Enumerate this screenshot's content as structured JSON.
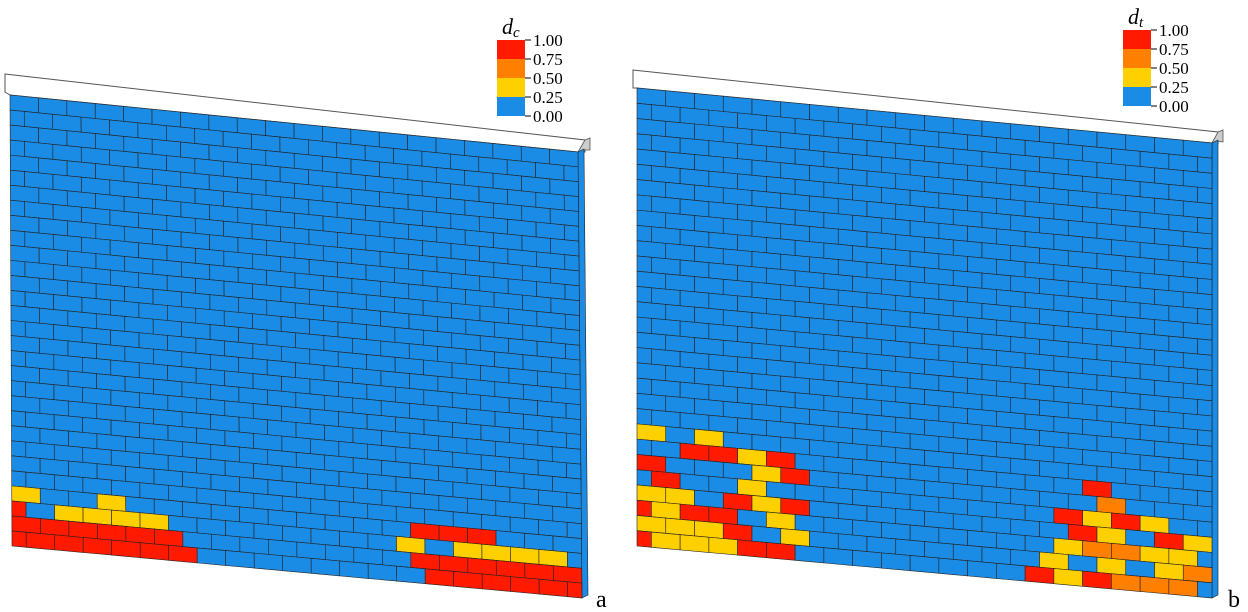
{
  "panels": [
    {
      "label": "a",
      "legend": {
        "title": "d",
        "subscript": "c",
        "labels": [
          "1.00",
          "0.75",
          "0.50",
          "0.25",
          "0.00"
        ]
      }
    },
    {
      "label": "b",
      "legend": {
        "title": "d",
        "subscript": "t",
        "labels": [
          "1.00",
          "0.75",
          "0.50",
          "0.25",
          "0.00"
        ]
      }
    }
  ]
}
